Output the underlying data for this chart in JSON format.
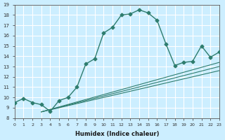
{
  "xlabel": "Humidex (Indice chaleur)",
  "background_color": "#cceeff",
  "grid_color": "#ffffff",
  "line_color": "#2e7d6e",
  "xlim": [
    0,
    23
  ],
  "ylim": [
    8,
    19
  ],
  "xticks": [
    0,
    1,
    2,
    3,
    4,
    5,
    6,
    7,
    8,
    9,
    10,
    11,
    12,
    13,
    14,
    15,
    16,
    17,
    18,
    19,
    20,
    21,
    22,
    23
  ],
  "yticks": [
    8,
    9,
    10,
    11,
    12,
    13,
    14,
    15,
    16,
    17,
    18,
    19
  ],
  "main_x": [
    0,
    1,
    2,
    3,
    4,
    5,
    6,
    7,
    8,
    9,
    10,
    11,
    12,
    13,
    14,
    15,
    16,
    17,
    18,
    19,
    20,
    21,
    22,
    23
  ],
  "main_y": [
    9.5,
    9.9,
    9.5,
    9.3,
    8.65,
    9.7,
    10.0,
    11.0,
    13.25,
    13.75,
    16.25,
    16.8,
    18.0,
    18.1,
    18.5,
    18.2,
    17.5,
    15.2,
    13.1,
    13.4,
    13.5,
    15.0,
    13.9,
    14.4
  ],
  "extra_lines": [
    {
      "x": [
        3,
        23
      ],
      "y": [
        8.6,
        12.6
      ]
    },
    {
      "x": [
        3,
        23
      ],
      "y": [
        8.6,
        13.0
      ]
    },
    {
      "x": [
        3,
        23
      ],
      "y": [
        8.6,
        13.4
      ]
    }
  ]
}
